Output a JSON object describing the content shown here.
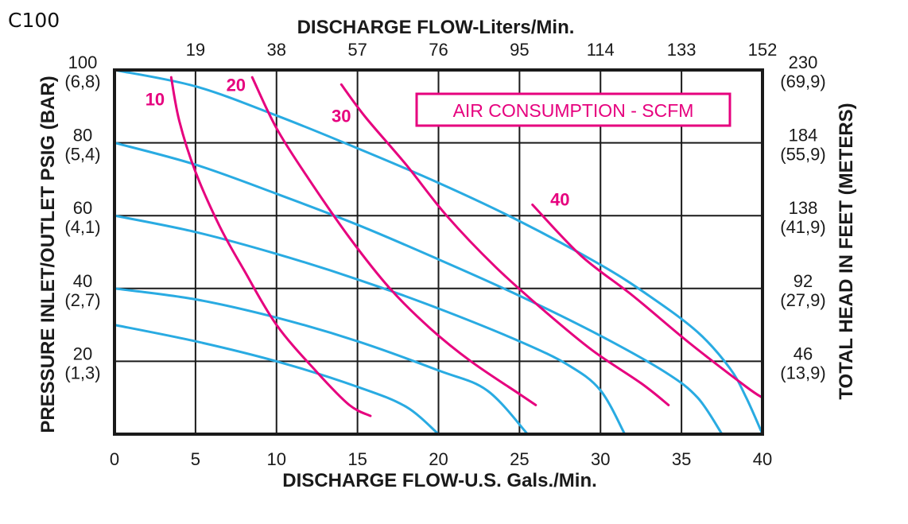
{
  "chart_data": {
    "type": "line",
    "model": "C100",
    "title": "",
    "xlabel": "DISCHARGE FLOW-U.S. Gals./Min.",
    "x2label": "DISCHARGE FLOW-Liters/Min.",
    "ylabel": "PRESSURE INLET/OUTLET PSIG (BAR)",
    "y2label": "TOTAL HEAD IN FEET (METERS)",
    "xlim": [
      0,
      40
    ],
    "ylim": [
      0,
      100
    ],
    "grid": true,
    "x_ticks": [
      {
        "value": 0,
        "label": "0"
      },
      {
        "value": 5,
        "label": "5"
      },
      {
        "value": 10,
        "label": "10"
      },
      {
        "value": 15,
        "label": "15"
      },
      {
        "value": 20,
        "label": "20"
      },
      {
        "value": 25,
        "label": "25"
      },
      {
        "value": 30,
        "label": "30"
      },
      {
        "value": 35,
        "label": "35"
      },
      {
        "value": 40,
        "label": "40"
      }
    ],
    "x2_ticks": [
      {
        "value": 5,
        "label": "19"
      },
      {
        "value": 10,
        "label": "38"
      },
      {
        "value": 15,
        "label": "57"
      },
      {
        "value": 20,
        "label": "76"
      },
      {
        "value": 25,
        "label": "95"
      },
      {
        "value": 30,
        "label": "114"
      },
      {
        "value": 35,
        "label": "133"
      },
      {
        "value": 40,
        "label": "152"
      }
    ],
    "y_ticks": [
      {
        "value": 100,
        "label": "100",
        "sub": "(6,8)"
      },
      {
        "value": 80,
        "label": "80",
        "sub": "(5,4)"
      },
      {
        "value": 60,
        "label": "60",
        "sub": "(4,1)"
      },
      {
        "value": 40,
        "label": "40",
        "sub": "(2,7)"
      },
      {
        "value": 20,
        "label": "20",
        "sub": "(1,3)"
      }
    ],
    "y2_ticks": [
      {
        "value": 100,
        "label": "230",
        "sub": "(69,9)"
      },
      {
        "value": 80,
        "label": "184",
        "sub": "(55,9)"
      },
      {
        "value": 60,
        "label": "138",
        "sub": "(41,9)"
      },
      {
        "value": 40,
        "label": "92",
        "sub": "(27,9)"
      },
      {
        "value": 20,
        "label": "46",
        "sub": "(13,9)"
      }
    ],
    "legend_box": {
      "text": "AIR CONSUMPTION - SCFM",
      "placement": "top-right"
    },
    "colors": {
      "pressure": "#29abe2",
      "air": "#e6007e",
      "grid": "#1a1a1a"
    },
    "pressure_series": [
      {
        "points": [
          [
            0,
            100
          ],
          [
            5,
            95.5
          ],
          [
            10,
            87.5
          ],
          [
            15,
            78.5
          ],
          [
            20,
            69
          ],
          [
            25,
            58.5
          ],
          [
            30,
            46.5
          ],
          [
            33,
            38
          ],
          [
            36,
            28
          ],
          [
            38,
            18
          ],
          [
            39,
            10
          ],
          [
            40,
            0
          ]
        ]
      },
      {
        "points": [
          [
            0,
            80
          ],
          [
            5,
            74
          ],
          [
            10,
            66
          ],
          [
            15,
            57.5
          ],
          [
            20,
            48
          ],
          [
            25,
            38
          ],
          [
            30,
            27
          ],
          [
            34,
            17
          ],
          [
            36,
            10
          ],
          [
            37.5,
            0
          ]
        ]
      },
      {
        "points": [
          [
            0,
            60
          ],
          [
            5,
            55.5
          ],
          [
            10,
            49.5
          ],
          [
            15,
            42.5
          ],
          [
            20,
            34.5
          ],
          [
            25,
            25.5
          ],
          [
            28,
            19
          ],
          [
            30,
            12
          ],
          [
            31.5,
            0
          ]
        ]
      },
      {
        "points": [
          [
            0,
            40
          ],
          [
            5,
            37
          ],
          [
            10,
            32
          ],
          [
            15,
            25.5
          ],
          [
            20,
            17.5
          ],
          [
            23,
            12
          ],
          [
            25.5,
            0
          ]
        ]
      },
      {
        "points": [
          [
            0,
            30
          ],
          [
            5,
            25.5
          ],
          [
            10,
            20
          ],
          [
            15,
            13
          ],
          [
            18,
            7.5
          ],
          [
            20,
            0
          ]
        ]
      }
    ],
    "air_series": [
      {
        "label": "10",
        "label_at": [
          2.5,
          92
        ],
        "points": [
          [
            3.5,
            98
          ],
          [
            4,
            86
          ],
          [
            5,
            72
          ],
          [
            6.5,
            57
          ],
          [
            8,
            45
          ],
          [
            10,
            30
          ],
          [
            12.5,
            17
          ],
          [
            14.5,
            8
          ],
          [
            15.8,
            5
          ]
        ]
      },
      {
        "label": "20",
        "label_at": [
          7.5,
          96
        ],
        "points": [
          [
            8.5,
            98
          ],
          [
            10,
            84
          ],
          [
            12,
            70
          ],
          [
            14.5,
            54
          ],
          [
            17,
            40
          ],
          [
            19.5,
            29
          ],
          [
            22,
            20
          ],
          [
            25,
            11
          ],
          [
            26,
            8
          ]
        ]
      },
      {
        "label": "30",
        "label_at": [
          14,
          87.5
        ],
        "points": [
          [
            14,
            96
          ],
          [
            15.5,
            87
          ],
          [
            18,
            74
          ],
          [
            20.5,
            60
          ],
          [
            23.5,
            46
          ],
          [
            26.5,
            34
          ],
          [
            29.5,
            23
          ],
          [
            32.5,
            14
          ],
          [
            34.2,
            8
          ]
        ]
      },
      {
        "label": "40",
        "label_at": [
          27.5,
          64.5
        ],
        "points": [
          [
            25.8,
            63
          ],
          [
            28.8,
            49
          ],
          [
            32,
            38
          ],
          [
            35.5,
            25
          ],
          [
            39,
            13
          ],
          [
            40,
            10
          ]
        ]
      }
    ]
  }
}
